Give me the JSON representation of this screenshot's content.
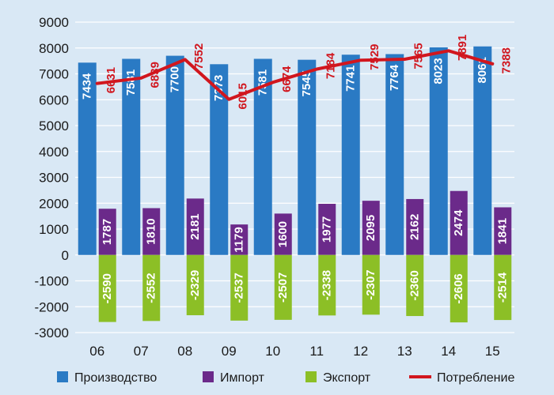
{
  "chart_data": {
    "type": "bar",
    "categories": [
      "06",
      "07",
      "08",
      "09",
      "10",
      "11",
      "12",
      "13",
      "14",
      "15"
    ],
    "ylim": [
      -3000,
      9000
    ],
    "yticks": [
      9000,
      8000,
      7000,
      6000,
      5000,
      4000,
      3000,
      2000,
      1000,
      0,
      -1000,
      -2000,
      -3000
    ],
    "grid": true,
    "legend_position": "bottom",
    "series": [
      {
        "name": "Производство",
        "type": "bar",
        "color": "#2a7ac4",
        "values": [
          7434,
          7581,
          7700,
          7373,
          7581,
          7545,
          7741,
          7764,
          8023,
          8061
        ]
      },
      {
        "name": "Импорт",
        "type": "bar",
        "color": "#6b2a8a",
        "values": [
          1787,
          1810,
          2181,
          1179,
          1600,
          1977,
          2095,
          2162,
          2474,
          1841
        ]
      },
      {
        "name": "Экспорт",
        "type": "bar",
        "color": "#8cbf26",
        "values": [
          -2590,
          -2552,
          -2329,
          -2537,
          -2507,
          -2338,
          -2307,
          -2360,
          -2606,
          -2514
        ]
      },
      {
        "name": "Потребление",
        "type": "line",
        "color": "#d1161e",
        "values": [
          6631,
          6839,
          7552,
          6015,
          6674,
          7184,
          7529,
          7565,
          7891,
          7388
        ]
      }
    ]
  }
}
